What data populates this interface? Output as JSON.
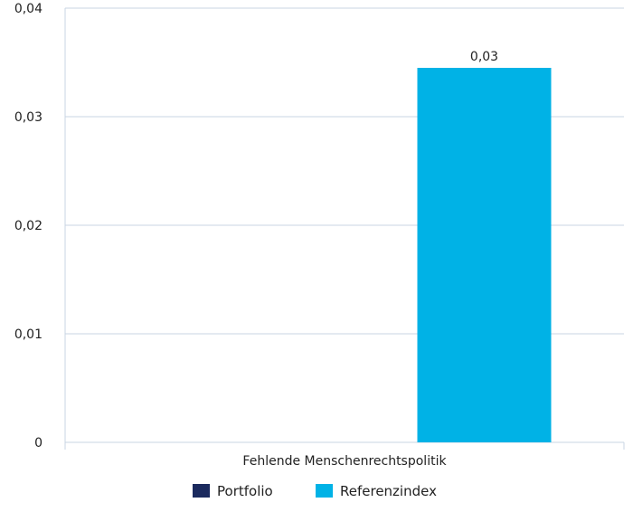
{
  "chart_data": {
    "type": "bar",
    "categories": [
      "Fehlende Menschenrechtspolitik"
    ],
    "series": [
      {
        "name": "Portfolio",
        "values": [
          0
        ],
        "color": "#1b2a5e"
      },
      {
        "name": "Referenzindex",
        "values": [
          0.0345
        ],
        "color": "#00b2e6"
      }
    ],
    "data_labels": [
      "",
      "0,03"
    ],
    "y_ticks": [
      "0",
      "0,01",
      "0,02",
      "0,03",
      "0,04"
    ],
    "ylim": [
      0,
      0.04
    ],
    "grid": true,
    "legend_position": "bottom"
  }
}
